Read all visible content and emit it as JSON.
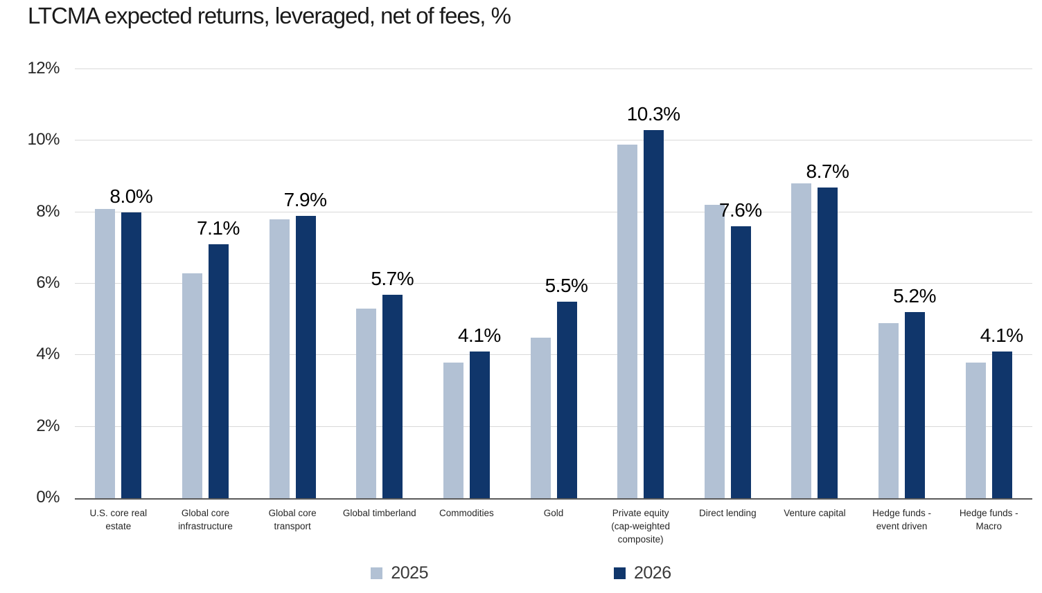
{
  "title": "LTCMA expected returns, leveraged, net of fees, %",
  "chart_data": {
    "type": "bar",
    "title": "LTCMA expected returns, leveraged, net of fees, %",
    "categories": [
      "U.S. core real estate",
      "Global core infrastructure",
      "Global core transport",
      "Global timberland",
      "Commodities",
      "Gold",
      "Private equity (cap-weighted composite)",
      "Direct lending",
      "Venture capital",
      "Hedge funds - event driven",
      "Hedge funds - Macro"
    ],
    "series": [
      {
        "name": "2025",
        "color": "#b2c1d4",
        "values": [
          8.1,
          6.3,
          7.8,
          5.3,
          3.8,
          4.5,
          9.9,
          8.2,
          8.8,
          4.9,
          3.8
        ]
      },
      {
        "name": "2026",
        "color": "#10366b",
        "values": [
          8.0,
          7.1,
          7.9,
          5.7,
          4.1,
          5.5,
          10.3,
          7.6,
          8.7,
          5.2,
          4.1
        ]
      }
    ],
    "bar_labels": {
      "series": "2026",
      "values": [
        "8.0%",
        "7.1%",
        "7.9%",
        "5.7%",
        "4.1%",
        "5.5%",
        "10.3%",
        "7.6%",
        "8.7%",
        "5.2%",
        "4.1%"
      ]
    },
    "ylabel": "",
    "xlabel": "",
    "ylim": [
      0,
      12
    ],
    "yticks": [
      0,
      2,
      4,
      6,
      8,
      10,
      12
    ],
    "ytick_labels": [
      "0%",
      "2%",
      "4%",
      "6%",
      "8%",
      "10%",
      "12%"
    ],
    "grid": true,
    "legend_position": "bottom"
  },
  "legend": {
    "items": [
      {
        "label": "2025",
        "color": "#b2c1d4"
      },
      {
        "label": "2026",
        "color": "#10366b"
      }
    ]
  },
  "colors": {
    "series_2025": "#b2c1d4",
    "series_2026": "#10366b",
    "gridline": "#d9d9d9",
    "axis_line": "#5a5a5a"
  }
}
